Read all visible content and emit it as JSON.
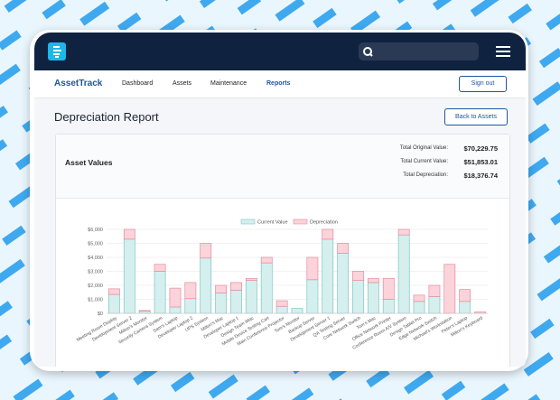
{
  "navbar": {
    "brand": "AssetTrack",
    "links": [
      "Dashboard",
      "Assets",
      "Maintenance",
      "Reports"
    ],
    "sign_out": "Sign out"
  },
  "header": {
    "title": "Depreciation Report",
    "back_button": "Back to Assets"
  },
  "summary": {
    "title": "Asset Values",
    "rows": [
      [
        "Total Original Value:",
        "$70,229.75"
      ],
      [
        "Total Current Value:",
        "$51,853.01"
      ],
      [
        "Total Depreciation:",
        "$18,376.74"
      ]
    ]
  },
  "chart_data": {
    "type": "bar",
    "stacked": true,
    "legend": "top",
    "grid": true,
    "categories": [
      "Meeting Room Display",
      "Development Server 2",
      "Milton's Monitor",
      "Security Camera System",
      "Sam's Laptop",
      "Developer Laptop 2",
      "UPS System",
      "Milton's Mac",
      "Developer Laptop 1",
      "Design Team iMac",
      "Mobile Device Testing Cart",
      "Main Conference Projector",
      "Tom's Monitor",
      "Backup Server",
      "Development Server 1",
      "QA Testing Server",
      "Core Network Switch",
      "Tom's Mac",
      "Office Network Printer",
      "Conference Room A/V System",
      "Design Tablet Pro",
      "Edge Network Switch",
      "Michael's Workstation",
      "Peter's Laptop",
      "Milton's Keyboard"
    ],
    "series": [
      {
        "name": "Current Value",
        "color": "#d4efee",
        "border_color": "#7cc7c5",
        "values": [
          1350,
          5300,
          150,
          3000,
          450,
          1050,
          3950,
          1450,
          1650,
          2350,
          3600,
          500,
          350,
          2400,
          5300,
          4300,
          2350,
          2200,
          1000,
          5600,
          850,
          1200,
          0,
          850,
          0
        ]
      },
      {
        "name": "Depreciation",
        "color": "#fbd3da",
        "border_color": "#e88a9c",
        "values": [
          400,
          700,
          50,
          500,
          1350,
          1150,
          1050,
          550,
          550,
          150,
          400,
          400,
          0,
          1600,
          700,
          700,
          650,
          300,
          1500,
          400,
          450,
          800,
          3500,
          850,
          100
        ]
      }
    ],
    "ylim": [
      0,
      6000
    ],
    "yticks": [
      {
        "value": 0,
        "label": "$0"
      },
      {
        "value": 1000,
        "label": "$1,000"
      },
      {
        "value": 2000,
        "label": "$2,000"
      },
      {
        "value": 3000,
        "label": "$3,000"
      },
      {
        "value": 4000,
        "label": "$4,000"
      },
      {
        "value": 5000,
        "label": "$5,000"
      },
      {
        "value": 6000,
        "label": "$6,000"
      }
    ]
  }
}
